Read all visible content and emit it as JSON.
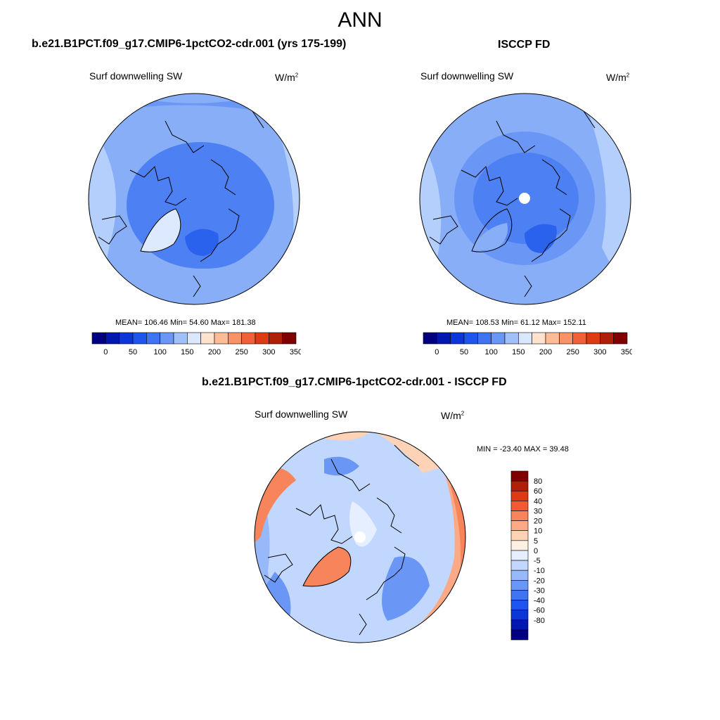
{
  "figure": {
    "title": "ANN",
    "colors": {
      "lightest_blue": "#dce9ff",
      "light_blue": "#b4cffc",
      "medium_light_blue": "#88aef8",
      "medium_blue": "#6a97f5",
      "blue": "#4d80f2",
      "deep_blue": "#2a62ee",
      "land_outline": "#000000"
    }
  },
  "panels": [
    {
      "id": "model",
      "title": "b.e21.B1PCT.f09_g17.CMIP6-1pctCO2-cdr.001 (yrs 175-199)",
      "variable": "Surf downwelling SW",
      "units_base": "W/m",
      "units_exp": "2",
      "stats": "MEAN= 106.46  Min=  54.60  Max= 181.38"
    },
    {
      "id": "obs",
      "title": "ISCCP FD",
      "variable": "Surf downwelling SW",
      "units_base": "W/m",
      "units_exp": "2",
      "stats": "MEAN= 108.53  Min=  61.12  Max= 152.11"
    },
    {
      "id": "diff",
      "title": "b.e21.B1PCT.f09_g17.CMIP6-1pctCO2-cdr.001 - ISCCP FD",
      "variable": "Surf downwelling SW",
      "units_base": "W/m",
      "units_exp": "2",
      "stats": "MIN = -23.40 MAX =  39.48"
    }
  ],
  "colorbars": {
    "absolute": {
      "colors": [
        "#000080",
        "#0018b0",
        "#0c36d8",
        "#1f55ef",
        "#3f74f3",
        "#6a97f5",
        "#a0c0fa",
        "#d9e8ff",
        "#ffe2cc",
        "#fdbb96",
        "#f99266",
        "#f2603a",
        "#de3a14",
        "#b02008",
        "#800000"
      ],
      "labels": [
        "0",
        "50",
        "100",
        "150",
        "200",
        "250",
        "300",
        "350"
      ]
    },
    "difference": {
      "colors": [
        "#800000",
        "#b02008",
        "#de3a14",
        "#f25a32",
        "#f7845a",
        "#fbaa85",
        "#fdd2b6",
        "#fff0e4",
        "#e6efff",
        "#c2d7fd",
        "#97b8f9",
        "#6a97f5",
        "#3f74f3",
        "#1f55ef",
        "#0c36d8",
        "#0018b0",
        "#000080"
      ],
      "labels": [
        "80",
        "60",
        "40",
        "30",
        "20",
        "10",
        "5",
        "0",
        "-5",
        "-10",
        "-20",
        "-30",
        "-40",
        "-60",
        "-80"
      ]
    }
  }
}
